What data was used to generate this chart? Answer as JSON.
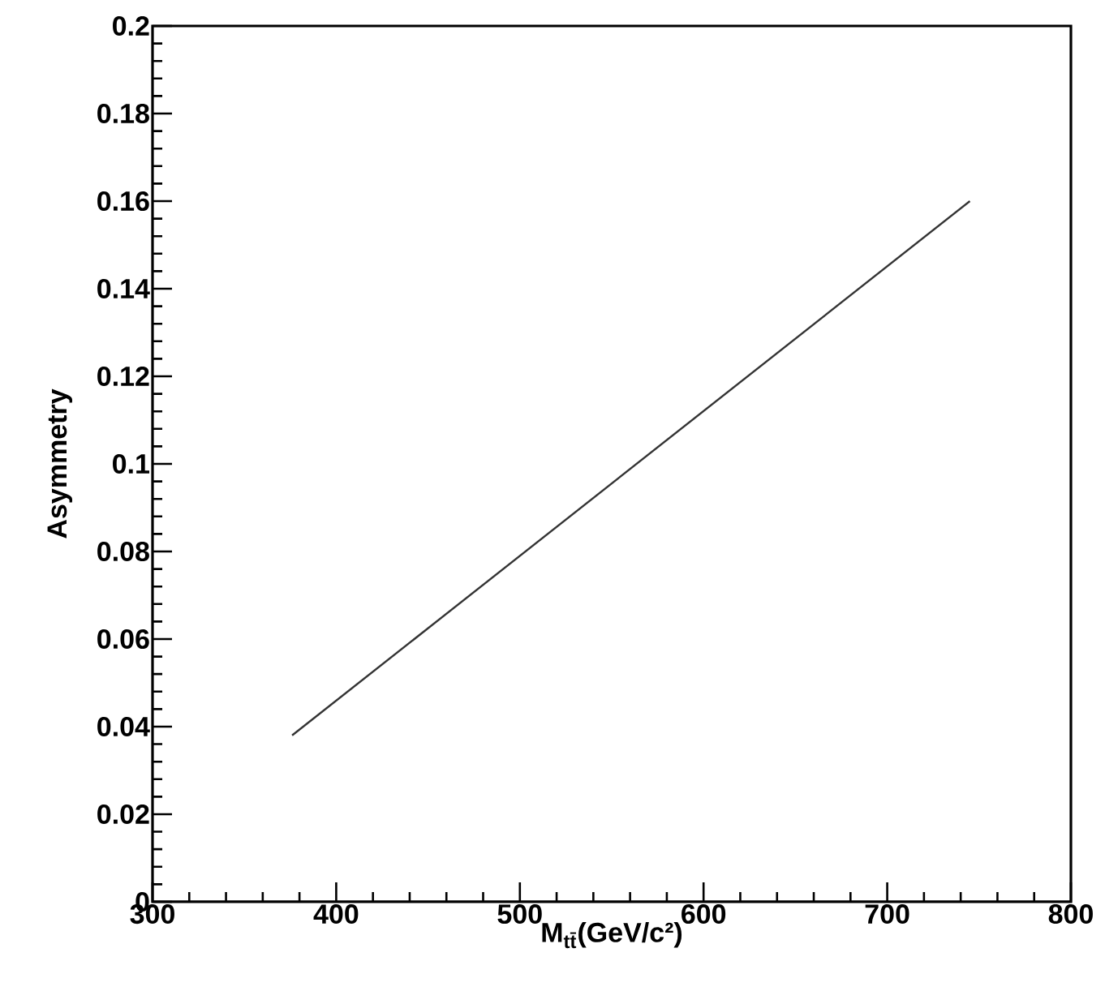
{
  "chart_data": {
    "type": "line",
    "xlabel": "M$_{tt̄}$(GeV/c²)",
    "ylabel": "Asymmetry",
    "x": [
      376,
      745
    ],
    "series": [
      {
        "color": "#333333",
        "values": [
          0.038,
          0.16
        ]
      }
    ],
    "xlim": [
      300,
      800
    ],
    "xticks": [
      300,
      400,
      500,
      600,
      700,
      800
    ],
    "ylim": [
      0,
      0.2
    ],
    "yticks": [
      0,
      0.02,
      0.04,
      0.06,
      0.08,
      0.1,
      0.12,
      0.14,
      0.16,
      0.18,
      0.2
    ],
    "grid": false,
    "marker": "none",
    "line_style": "solid"
  }
}
